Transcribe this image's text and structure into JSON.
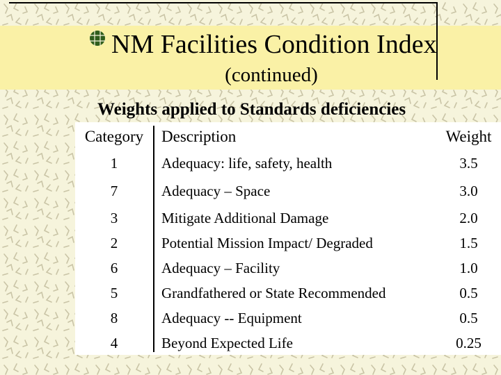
{
  "slide": {
    "title": "NM Facilities Condition Index",
    "subtitle": "(continued)",
    "section_heading": "Weights applied to Standards deficiencies"
  },
  "colors": {
    "background": "#f6f4dc",
    "title_band": "#faf1a6",
    "bullet_green": "#2f5d1c",
    "pattern": "#c9c4a6"
  },
  "icons": {
    "bullet": "green-round-bullet-icon"
  },
  "table": {
    "headers": {
      "category": "Category",
      "description": "Description",
      "weight": "Weight"
    },
    "rows": [
      {
        "category": "1",
        "description": "Adequacy: life, safety, health",
        "weight": "3.5"
      },
      {
        "category": "7",
        "description": "Adequacy – Space",
        "weight": "3.0"
      },
      {
        "category": "3",
        "description": "Mitigate Additional Damage",
        "weight": "2.0"
      },
      {
        "category": "2",
        "description": "Potential Mission Impact/ Degraded",
        "weight": "1.5"
      },
      {
        "category": "6",
        "description": "Adequacy – Facility",
        "weight": "1.0"
      },
      {
        "category": "5",
        "description": "Grandfathered or State Recommended",
        "weight": "0.5"
      },
      {
        "category": "8",
        "description": "Adequacy -- Equipment",
        "weight": "0.5"
      },
      {
        "category": "4",
        "description": "Beyond Expected Life",
        "weight": "0.25"
      }
    ]
  }
}
